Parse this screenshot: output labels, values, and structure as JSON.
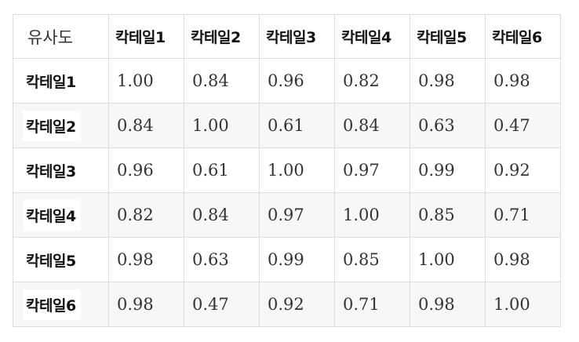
{
  "table": {
    "corner_label": "유사도",
    "columns": [
      "칵테일1",
      "칵테일2",
      "칵테일3",
      "칵테일4",
      "칵테일5",
      "칵테일6"
    ],
    "rows": [
      {
        "label": "칵테일1",
        "values": [
          "1.00",
          "0.84",
          "0.96",
          "0.82",
          "0.98",
          "0.98"
        ]
      },
      {
        "label": "칵테일2",
        "values": [
          "0.84",
          "1.00",
          "0.61",
          "0.84",
          "0.63",
          "0.47"
        ]
      },
      {
        "label": "칵테일3",
        "values": [
          "0.96",
          "0.61",
          "1.00",
          "0.97",
          "0.99",
          "0.92"
        ]
      },
      {
        "label": "칵테일4",
        "values": [
          "0.82",
          "0.84",
          "0.97",
          "1.00",
          "0.85",
          "0.71"
        ]
      },
      {
        "label": "칵테일5",
        "values": [
          "0.98",
          "0.63",
          "0.99",
          "0.85",
          "1.00",
          "0.98"
        ]
      },
      {
        "label": "칵테일6",
        "values": [
          "0.98",
          "0.47",
          "0.92",
          "0.71",
          "0.98",
          "1.00"
        ]
      }
    ]
  },
  "colors": {
    "border": "#dcdcdc",
    "alt_row_background": "#f7f7f7",
    "text": "#333333"
  }
}
